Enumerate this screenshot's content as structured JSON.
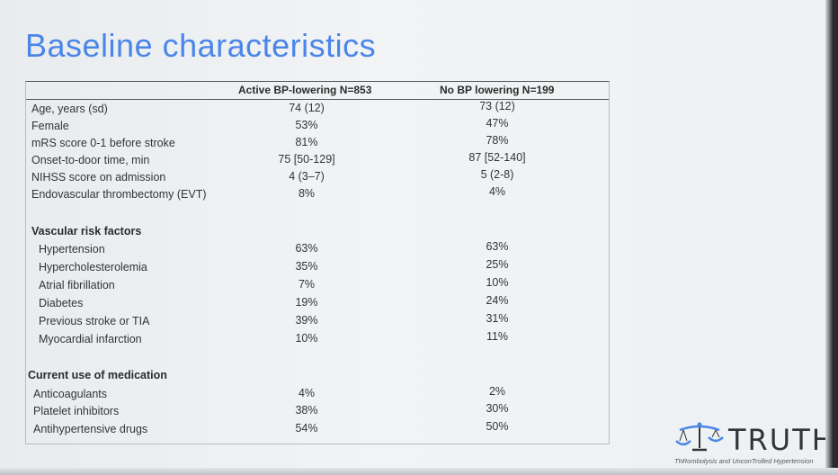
{
  "title": "Baseline characteristics",
  "columns": {
    "col1": "Active BP-lowering N=853",
    "col2": "No BP lowering N=199"
  },
  "rows": [
    {
      "label": "Age, years (sd)",
      "c1": "74 (12)",
      "c2": "73 (12)"
    },
    {
      "label": "Female",
      "c1": "53%",
      "c2": "47%"
    },
    {
      "label": "mRS score 0-1 before stroke",
      "c1": "81%",
      "c2": "78%"
    },
    {
      "label": "Onset-to-door time, min",
      "c1": "75 [50-129]",
      "c2": "87 [52-140]"
    },
    {
      "label": "NIHSS score on admission",
      "c1": "4 (3–7)",
      "c2": "5 (2-8)"
    },
    {
      "label": "Endovascular thrombectomy (EVT)",
      "c1": "8%",
      "c2": "4%"
    }
  ],
  "vascular": {
    "heading": "Vascular risk factors",
    "rows": [
      {
        "label": "Hypertension",
        "c1": "63%",
        "c2": "63%"
      },
      {
        "label": "Hypercholesterolemia",
        "c1": "35%",
        "c2": "25%"
      },
      {
        "label": "Atrial fibrillation",
        "c1": "7%",
        "c2": "10%"
      },
      {
        "label": "Diabetes",
        "c1": "19%",
        "c2": "24%"
      },
      {
        "label": "Previous stroke or TIA",
        "c1": "39%",
        "c2": "31%"
      },
      {
        "label": "Myocardial infarction",
        "c1": "10%",
        "c2": "11%"
      }
    ]
  },
  "medication": {
    "heading": "Current use of medication",
    "rows": [
      {
        "label": "Anticoagulants",
        "c1": "4%",
        "c2": "2%"
      },
      {
        "label": "Platelet inhibitors",
        "c1": "38%",
        "c2": "30%"
      },
      {
        "label": "Antihypertensive drugs",
        "c1": "54%",
        "c2": "50%"
      }
    ]
  },
  "logo": {
    "word": "TRUTH",
    "subtitle": "ThRombolysis and UnconTrolled Hypertension"
  },
  "colors": {
    "title": "#4a86e8",
    "logo_icon": "#4a86e8"
  }
}
